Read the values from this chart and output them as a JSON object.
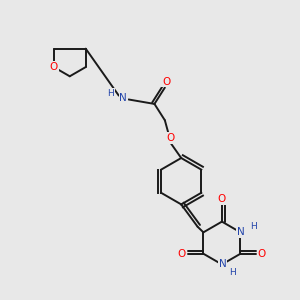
{
  "bg_color": "#e8e8e8",
  "bond_color": "#1a1a1a",
  "O_color": "#ff0000",
  "N_color": "#2244aa",
  "bond_lw": 1.4,
  "font_size": 7.5,
  "xlim": [
    0,
    10
  ],
  "ylim": [
    0,
    10
  ]
}
